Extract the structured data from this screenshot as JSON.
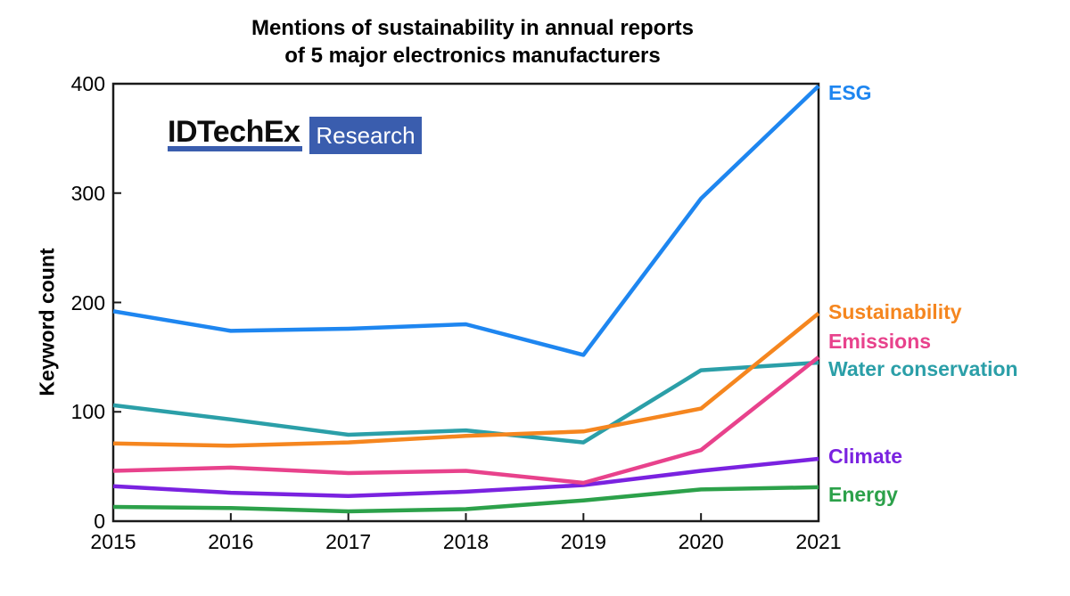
{
  "title": {
    "line1": "Mentions of sustainability in annual reports",
    "line2": "of 5 major electronics manufacturers"
  },
  "logo": {
    "name": "IDTechEx",
    "badge": "Research",
    "brand_color": "#3a5dae"
  },
  "chart_data": {
    "type": "line",
    "title": "Mentions of sustainability in annual reports of 5 major electronics manufacturers",
    "xlabel": "",
    "ylabel": "Keyword count",
    "x": [
      2015,
      2016,
      2017,
      2018,
      2019,
      2020,
      2021
    ],
    "ylim": [
      0,
      400
    ],
    "yticks": [
      0,
      100,
      200,
      300,
      400
    ],
    "grid": false,
    "axis_color": "#1a1a1a",
    "legend_position": "right-end-labels",
    "series": [
      {
        "name": "ESG",
        "color": "#1e86f0",
        "values": [
          192,
          174,
          176,
          180,
          152,
          295,
          398
        ],
        "label_dy": 8
      },
      {
        "name": "Sustainability",
        "color": "#f5861f",
        "values": [
          71,
          69,
          72,
          78,
          82,
          103,
          190
        ],
        "label_dy": -2
      },
      {
        "name": "Emissions",
        "color": "#e8428c",
        "values": [
          46,
          49,
          44,
          46,
          35,
          65,
          150
        ],
        "label_dy": -18
      },
      {
        "name": "Water conservation",
        "color": "#2b9fa8",
        "values": [
          106,
          93,
          79,
          83,
          72,
          138,
          145
        ],
        "label_dy": 7
      },
      {
        "name": "Climate",
        "color": "#7a22e0",
        "values": [
          32,
          26,
          23,
          27,
          33,
          46,
          57
        ],
        "label_dy": -3
      },
      {
        "name": "Energy",
        "color": "#2ca14a",
        "values": [
          13,
          12,
          9,
          11,
          19,
          29,
          31
        ],
        "label_dy": 8
      }
    ]
  }
}
